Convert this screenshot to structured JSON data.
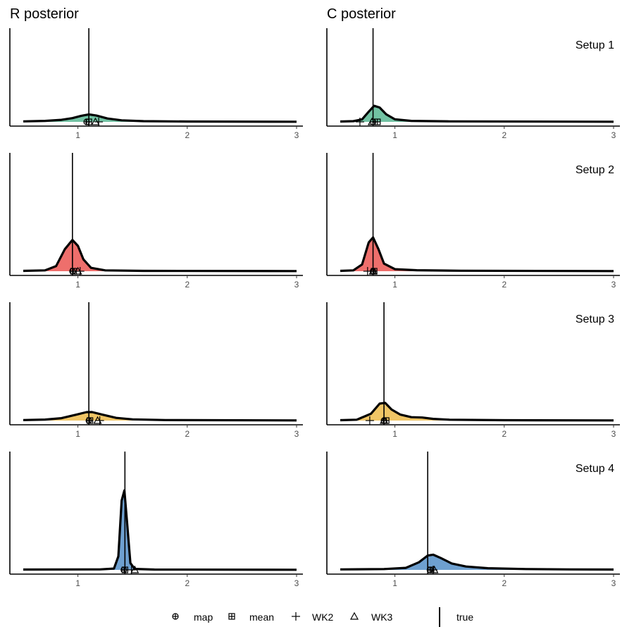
{
  "figure": {
    "column_titles": [
      "R posterior",
      "C posterior"
    ]
  },
  "chart_data": [
    {
      "type": "area",
      "panel": "R posterior",
      "row_label": "",
      "setup": "Setup 1",
      "fill": "#72c2a3",
      "true_value": 1.1,
      "xlim": [
        0.4,
        3.05
      ],
      "xticks": [
        1,
        2,
        3
      ],
      "xtick_labels": [
        "1",
        "2",
        "3"
      ],
      "ylim": [
        0,
        5
      ],
      "density": [
        [
          0.5,
          0.03
        ],
        [
          0.7,
          0.06
        ],
        [
          0.85,
          0.12
        ],
        [
          0.95,
          0.22
        ],
        [
          1.03,
          0.36
        ],
        [
          1.1,
          0.44
        ],
        [
          1.17,
          0.37
        ],
        [
          1.27,
          0.2
        ],
        [
          1.4,
          0.09
        ],
        [
          1.6,
          0.04
        ],
        [
          2.0,
          0.02
        ],
        [
          3.0,
          0.01
        ]
      ],
      "estimates": {
        "map": 1.08,
        "mean": 1.1,
        "WK2": 1.19,
        "WK3": 1.16
      }
    },
    {
      "type": "area",
      "panel": "C posterior",
      "row_label": "Setup 1",
      "setup": "Setup 1",
      "fill": "#72c2a3",
      "true_value": 0.8,
      "xlim": [
        0.4,
        3.05
      ],
      "xticks": [
        1,
        2,
        3
      ],
      "xtick_labels": [
        "1",
        "2",
        "3"
      ],
      "ylim": [
        0,
        5
      ],
      "density": [
        [
          0.5,
          0.02
        ],
        [
          0.62,
          0.04
        ],
        [
          0.7,
          0.15
        ],
        [
          0.76,
          0.6
        ],
        [
          0.81,
          0.95
        ],
        [
          0.86,
          0.85
        ],
        [
          0.92,
          0.45
        ],
        [
          1.0,
          0.15
        ],
        [
          1.15,
          0.06
        ],
        [
          1.5,
          0.03
        ],
        [
          3.0,
          0.01
        ]
      ],
      "estimates": {
        "map": 0.8,
        "mean": 0.84,
        "WK2": 0.68,
        "WK3": 0.79
      }
    },
    {
      "type": "area",
      "panel": "R posterior",
      "row_label": "",
      "setup": "Setup 2",
      "fill": "#ee6f6c",
      "true_value": 0.95,
      "xlim": [
        0.4,
        3.05
      ],
      "xticks": [
        1,
        2,
        3
      ],
      "xtick_labels": [
        "1",
        "2",
        "3"
      ],
      "ylim": [
        0,
        5
      ],
      "density": [
        [
          0.5,
          0.02
        ],
        [
          0.7,
          0.05
        ],
        [
          0.8,
          0.3
        ],
        [
          0.88,
          1.3
        ],
        [
          0.95,
          1.85
        ],
        [
          1.0,
          1.5
        ],
        [
          1.05,
          0.7
        ],
        [
          1.12,
          0.2
        ],
        [
          1.25,
          0.05
        ],
        [
          1.6,
          0.02
        ],
        [
          3.0,
          0.01
        ]
      ],
      "estimates": {
        "map": 0.95,
        "mean": 0.96,
        "WK2": 1.02,
        "WK3": 1.0
      }
    },
    {
      "type": "area",
      "panel": "C posterior",
      "row_label": "Setup 2",
      "setup": "Setup 2",
      "fill": "#ee6f6c",
      "true_value": 0.8,
      "xlim": [
        0.4,
        3.05
      ],
      "xticks": [
        1,
        2,
        3
      ],
      "xtick_labels": [
        "1",
        "2",
        "3"
      ],
      "ylim": [
        0,
        5
      ],
      "density": [
        [
          0.5,
          0.02
        ],
        [
          0.62,
          0.05
        ],
        [
          0.7,
          0.4
        ],
        [
          0.76,
          1.7
        ],
        [
          0.8,
          2.0
        ],
        [
          0.85,
          1.3
        ],
        [
          0.9,
          0.45
        ],
        [
          1.0,
          0.12
        ],
        [
          1.2,
          0.06
        ],
        [
          1.6,
          0.03
        ],
        [
          3.0,
          0.01
        ]
      ],
      "estimates": {
        "map": 0.8,
        "mean": 0.81,
        "WK2": 0.75,
        "WK3": 0.8
      }
    },
    {
      "type": "area",
      "panel": "R posterior",
      "row_label": "",
      "setup": "Setup 3",
      "fill": "#f0c565",
      "true_value": 1.1,
      "xlim": [
        0.4,
        3.05
      ],
      "xticks": [
        1,
        2,
        3
      ],
      "xtick_labels": [
        "1",
        "2",
        "3"
      ],
      "ylim": [
        0,
        5
      ],
      "density": [
        [
          0.5,
          0.03
        ],
        [
          0.7,
          0.06
        ],
        [
          0.85,
          0.14
        ],
        [
          0.98,
          0.34
        ],
        [
          1.08,
          0.5
        ],
        [
          1.13,
          0.5
        ],
        [
          1.22,
          0.36
        ],
        [
          1.35,
          0.16
        ],
        [
          1.5,
          0.07
        ],
        [
          1.8,
          0.03
        ],
        [
          3.0,
          0.01
        ]
      ],
      "estimates": {
        "map": 1.1,
        "mean": 1.11,
        "WK2": 1.2,
        "WK3": 1.18
      }
    },
    {
      "type": "area",
      "panel": "C posterior",
      "row_label": "Setup 3",
      "setup": "Setup 3",
      "fill": "#f0c565",
      "true_value": 0.9,
      "xlim": [
        0.4,
        3.05
      ],
      "xticks": [
        1,
        2,
        3
      ],
      "xtick_labels": [
        "1",
        "2",
        "3"
      ],
      "ylim": [
        0,
        5
      ],
      "density": [
        [
          0.5,
          0.02
        ],
        [
          0.65,
          0.05
        ],
        [
          0.78,
          0.4
        ],
        [
          0.86,
          1.0
        ],
        [
          0.91,
          1.05
        ],
        [
          0.97,
          0.65
        ],
        [
          1.05,
          0.35
        ],
        [
          1.15,
          0.2
        ],
        [
          1.25,
          0.18
        ],
        [
          1.35,
          0.1
        ],
        [
          1.5,
          0.05
        ],
        [
          2.0,
          0.02
        ],
        [
          3.0,
          0.01
        ]
      ],
      "estimates": {
        "map": 0.9,
        "mean": 0.92,
        "WK2": 0.77,
        "WK3": 0.9
      }
    },
    {
      "type": "area",
      "panel": "R posterior",
      "row_label": "",
      "setup": "Setup 4",
      "fill": "#6ea0d0",
      "true_value": 1.43,
      "xlim": [
        0.4,
        3.05
      ],
      "xticks": [
        1,
        2,
        3
      ],
      "xtick_labels": [
        "1",
        "2",
        "3"
      ],
      "ylim": [
        0,
        5
      ],
      "density": [
        [
          0.5,
          0.02
        ],
        [
          1.2,
          0.03
        ],
        [
          1.33,
          0.08
        ],
        [
          1.37,
          0.8
        ],
        [
          1.4,
          4.1
        ],
        [
          1.425,
          4.7
        ],
        [
          1.45,
          2.8
        ],
        [
          1.48,
          0.4
        ],
        [
          1.52,
          0.06
        ],
        [
          1.7,
          0.02
        ],
        [
          3.0,
          0.01
        ]
      ],
      "estimates": {
        "map": 1.42,
        "mean": 1.43,
        "WK2": 1.49,
        "WK3": 1.52
      }
    },
    {
      "type": "area",
      "panel": "C posterior",
      "row_label": "Setup 4",
      "setup": "Setup 4",
      "fill": "#6ea0d0",
      "true_value": 1.3,
      "xlim": [
        0.4,
        3.05
      ],
      "xticks": [
        1,
        2,
        3
      ],
      "xtick_labels": [
        "1",
        "2",
        "3"
      ],
      "ylim": [
        0,
        5
      ],
      "density": [
        [
          0.5,
          0.03
        ],
        [
          0.9,
          0.05
        ],
        [
          1.1,
          0.12
        ],
        [
          1.22,
          0.45
        ],
        [
          1.3,
          0.85
        ],
        [
          1.35,
          0.9
        ],
        [
          1.42,
          0.7
        ],
        [
          1.52,
          0.38
        ],
        [
          1.65,
          0.2
        ],
        [
          1.85,
          0.1
        ],
        [
          2.2,
          0.05
        ],
        [
          2.6,
          0.03
        ],
        [
          3.0,
          0.02
        ]
      ],
      "estimates": {
        "map": 1.32,
        "mean": 1.33,
        "WK2": 1.35,
        "WK3": 1.36
      }
    }
  ],
  "legend": {
    "items": [
      {
        "key": "map",
        "label": "map",
        "symbol": "circle-plus"
      },
      {
        "key": "mean",
        "label": "mean",
        "symbol": "square-plus"
      },
      {
        "key": "WK2",
        "label": "WK2",
        "symbol": "plus"
      },
      {
        "key": "WK3",
        "label": "WK3",
        "symbol": "triangle"
      }
    ],
    "true_label": "true",
    "position": "bottom"
  }
}
